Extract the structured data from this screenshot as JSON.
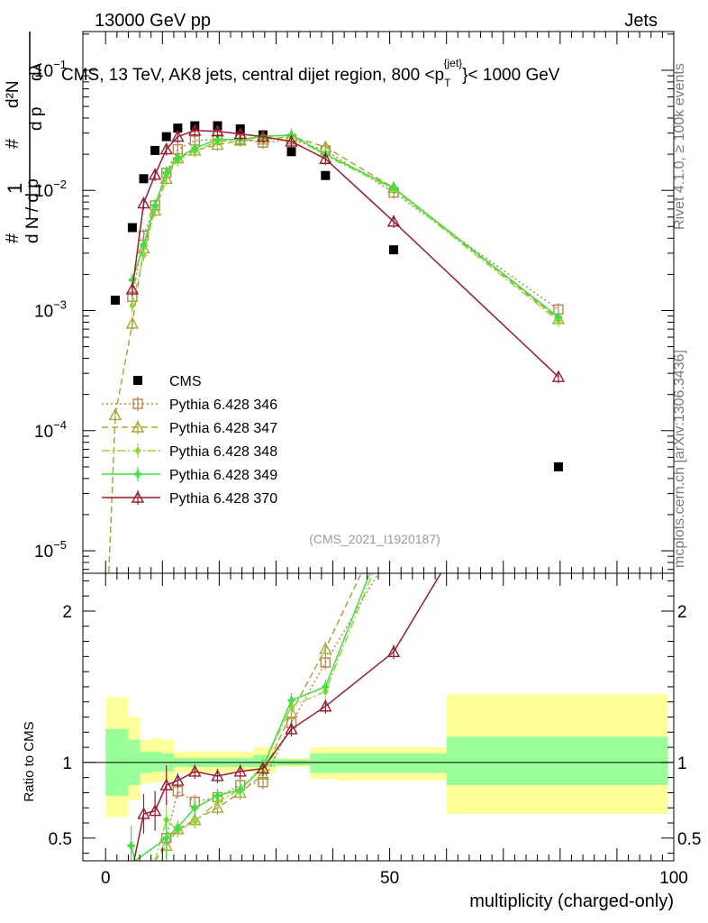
{
  "header": {
    "left": "13000 GeV pp",
    "right": "Jets"
  },
  "side_text": {
    "rivet": "Rivet 4.1.0, ≥ 100k events",
    "mcplots": "mcplots.cern.ch [arXiv:1306.3436]"
  },
  "chart_data": [
    {
      "type": "scatter",
      "panel": "main",
      "title": "CMS, 13 TeV, AK8 jets, central dijet region, 800 <p_T^{jet}< 1000 GeV",
      "title_main": "CMS, 13 TeV, AK8 jets, central dijet region, 800 <p",
      "title_sup": "{jet}",
      "title_sub": "T",
      "title_end": "}< 1000 GeV",
      "ylabel": "1/dN/dp_T d^2N/dp_T dλ",
      "ylabel_parts": {
        "one": "1",
        "hash1": "#",
        "hash2": "#",
        "dn": "d N / d p",
        "d2n": "d²N",
        "dpdl": "d p",
        "dl": "dλ",
        "t": "T"
      },
      "y_scale": "log",
      "ylim": [
        6.5e-06,
        0.21
      ],
      "xlim": [
        -4,
        100
      ],
      "y_ticks": [
        {
          "v": 0.1,
          "label": "10",
          "exp": "−1"
        },
        {
          "v": 0.01,
          "label": "10",
          "exp": "−2"
        },
        {
          "v": 0.001,
          "label": "10",
          "exp": "−3"
        },
        {
          "v": 0.0001,
          "label": "10",
          "exp": "−4"
        },
        {
          "v": 1e-05,
          "label": "10",
          "exp": "−5"
        }
      ],
      "legend_position": "lower-left",
      "watermark": "(CMS_2021_I1920187)",
      "series": [
        {
          "name": "CMS",
          "style": "square-filled",
          "color": "#000000",
          "x": [
            1.7,
            4.7,
            6.7,
            8.7,
            10.7,
            12.7,
            15.7,
            19.7,
            23.7,
            27.7,
            32.7,
            38.7,
            50.7,
            79.7
          ],
          "y": [
            0.00122,
            0.0049,
            0.0125,
            0.0215,
            0.028,
            0.033,
            0.0345,
            0.0345,
            0.0325,
            0.029,
            0.021,
            0.0133,
            0.0032,
            5e-05
          ]
        },
        {
          "name": "Pythia 6.428 346",
          "style": "square-open",
          "dash": "2,3",
          "color": "#b8864d",
          "x": [
            4.7,
            6.7,
            8.7,
            10.7,
            12.7,
            15.7,
            19.7,
            23.7,
            27.7,
            32.7,
            38.7,
            50.7,
            79.7
          ],
          "y": [
            0.0013,
            0.0042,
            0.0075,
            0.014,
            0.022,
            0.026,
            0.0265,
            0.0265,
            0.025,
            0.0265,
            0.0215,
            0.0096,
            0.00102
          ]
        },
        {
          "name": "Pythia 6.428 347",
          "style": "triangle-open",
          "dash": "7,4",
          "color": "#a8a832",
          "x": [
            1.7,
            4.7,
            6.7,
            8.7,
            10.7,
            12.7,
            15.7,
            19.7,
            23.7,
            27.7,
            32.7,
            38.7,
            50.7,
            79.7
          ],
          "y": [
            0.000135,
            0.00078,
            0.0033,
            0.0068,
            0.0125,
            0.0185,
            0.0215,
            0.024,
            0.026,
            0.0265,
            0.028,
            0.023,
            0.0105,
            0.00085
          ]
        },
        {
          "name": "Pythia 6.428 348",
          "style": "diamond",
          "dash": "9,3,2,3",
          "color": "#96d83c",
          "x": [
            4.7,
            6.7,
            8.7,
            10.7,
            12.7,
            15.7,
            19.7,
            23.7,
            27.7,
            32.7,
            38.7,
            50.7,
            79.7
          ],
          "y": [
            0.0011,
            0.0029,
            0.0072,
            0.0135,
            0.0178,
            0.0212,
            0.0255,
            0.0265,
            0.0285,
            0.0285,
            0.0195,
            0.0102,
            0.00082
          ]
        },
        {
          "name": "Pythia 6.428 349",
          "style": "cross",
          "dash": "",
          "color": "#40e040",
          "x": [
            4.7,
            6.7,
            8.7,
            10.7,
            12.7,
            15.7,
            19.7,
            23.7,
            27.7,
            32.7,
            38.7,
            50.7,
            79.7
          ],
          "y": [
            0.0018,
            0.0035,
            0.0075,
            0.014,
            0.0185,
            0.0225,
            0.0265,
            0.0265,
            0.028,
            0.029,
            0.02,
            0.0105,
            0.00088
          ]
        },
        {
          "name": "Pythia 6.428 370",
          "style": "triangle-open",
          "dash": "",
          "color": "#9b1b30",
          "x": [
            4.7,
            6.7,
            8.7,
            10.7,
            12.7,
            15.7,
            19.7,
            23.7,
            27.7,
            32.7,
            38.7,
            50.7,
            79.7
          ],
          "y": [
            0.0015,
            0.0078,
            0.0135,
            0.022,
            0.028,
            0.0315,
            0.031,
            0.0295,
            0.028,
            0.0255,
            0.0183,
            0.0055,
            0.00028
          ]
        }
      ]
    },
    {
      "type": "line",
      "panel": "ratio",
      "ylabel": "Ratio to CMS",
      "xlabel": "multiplicity (charged-only)",
      "ylim": [
        0.35,
        2.25
      ],
      "xlim": [
        -4,
        100
      ],
      "y_ticks": [
        0.5,
        1,
        2
      ],
      "y_tick_labels": [
        "0.5",
        "1",
        "2"
      ],
      "x_ticks": [
        0,
        50,
        100
      ],
      "x_tick_labels": [
        "0",
        "50",
        "100"
      ],
      "bands": [
        {
          "x0": 0,
          "x1": 4,
          "yellow": [
            0.64,
            1.43
          ],
          "green": [
            0.78,
            1.22
          ]
        },
        {
          "x0": 4,
          "x1": 6,
          "yellow": [
            0.75,
            1.3
          ],
          "green": [
            0.85,
            1.15
          ]
        },
        {
          "x0": 6,
          "x1": 8,
          "yellow": [
            0.86,
            1.15
          ],
          "green": [
            0.93,
            1.07
          ]
        },
        {
          "x0": 8,
          "x1": 10,
          "yellow": [
            0.87,
            1.16
          ],
          "green": [
            0.94,
            1.07
          ]
        },
        {
          "x0": 10,
          "x1": 12,
          "yellow": [
            0.88,
            1.15
          ],
          "green": [
            0.94,
            1.06
          ]
        },
        {
          "x0": 12,
          "x1": 14,
          "yellow": [
            0.93,
            1.07
          ],
          "green": [
            0.97,
            1.03
          ]
        },
        {
          "x0": 14,
          "x1": 22,
          "yellow": [
            0.93,
            1.07
          ],
          "green": [
            0.97,
            1.03
          ]
        },
        {
          "x0": 22,
          "x1": 26,
          "yellow": [
            0.94,
            1.07
          ],
          "green": [
            0.97,
            1.03
          ]
        },
        {
          "x0": 26,
          "x1": 30,
          "yellow": [
            0.93,
            1.1
          ],
          "green": [
            0.97,
            1.05
          ]
        },
        {
          "x0": 30,
          "x1": 36,
          "yellow": [
            0.97,
            1.03
          ],
          "green": [
            0.98,
            1.02
          ]
        },
        {
          "x0": 36,
          "x1": 41,
          "yellow": [
            0.89,
            1.1
          ],
          "green": [
            0.93,
            1.06
          ]
        },
        {
          "x0": 41,
          "x1": 60,
          "yellow": [
            0.88,
            1.1
          ],
          "green": [
            0.93,
            1.06
          ]
        },
        {
          "x0": 60,
          "x1": 99,
          "yellow": [
            0.66,
            1.45
          ],
          "green": [
            0.85,
            1.17
          ]
        }
      ],
      "series": [
        {
          "name": "Pythia 6.428 346",
          "color": "#b8864d",
          "style": "square-open",
          "dash": "2,3",
          "x": [
            10.7,
            12.7,
            15.7,
            19.7,
            23.7,
            27.7,
            32.7,
            38.7,
            48
          ],
          "y": [
            0.5,
            0.81,
            0.74,
            0.77,
            0.85,
            0.87,
            1.26,
            1.66,
            2.25
          ]
        },
        {
          "name": "Pythia 6.428 347",
          "color": "#a8a832",
          "style": "triangle-open",
          "dash": "7,4",
          "x": [
            8.7,
            10.7,
            12.7,
            15.7,
            19.7,
            23.7,
            27.7,
            32.7,
            38.7,
            45
          ],
          "y": [
            0.35,
            0.45,
            0.56,
            0.62,
            0.7,
            0.8,
            0.92,
            1.33,
            1.75,
            2.25
          ]
        },
        {
          "name": "Pythia 6.428 348",
          "color": "#96d83c",
          "style": "diamond",
          "dash": "9,3,2,3",
          "x": [
            8.7,
            10.7,
            12.7,
            15.7,
            19.7,
            23.7,
            27.7,
            32.7,
            38.7,
            47
          ],
          "y": [
            0.35,
            0.62,
            0.55,
            0.61,
            0.74,
            0.82,
            0.98,
            1.37,
            1.47,
            2.25
          ]
        },
        {
          "name": "Pythia 6.428 349",
          "color": "#40e040",
          "style": "cross",
          "dash": "",
          "x": [
            4.5,
            5.2,
            10.7,
            12.7,
            15.7,
            19.7,
            23.7,
            27.7,
            32.7,
            38.7,
            46.5
          ],
          "y": [
            0.45,
            0.35,
            0.5,
            0.57,
            0.7,
            0.78,
            0.82,
            0.97,
            1.41,
            1.5,
            2.25
          ]
        },
        {
          "name": "Pythia 6.428 370",
          "color": "#9b1b30",
          "style": "triangle-open",
          "dash": "",
          "x": [
            5.0,
            6.7,
            8.7,
            10.7,
            12.7,
            15.7,
            19.7,
            23.7,
            27.7,
            32.7,
            38.7,
            50.7,
            59
          ],
          "y": [
            0.35,
            0.66,
            0.68,
            0.85,
            0.88,
            0.94,
            0.91,
            0.94,
            0.96,
            1.22,
            1.37,
            1.73,
            2.25
          ]
        }
      ]
    }
  ]
}
